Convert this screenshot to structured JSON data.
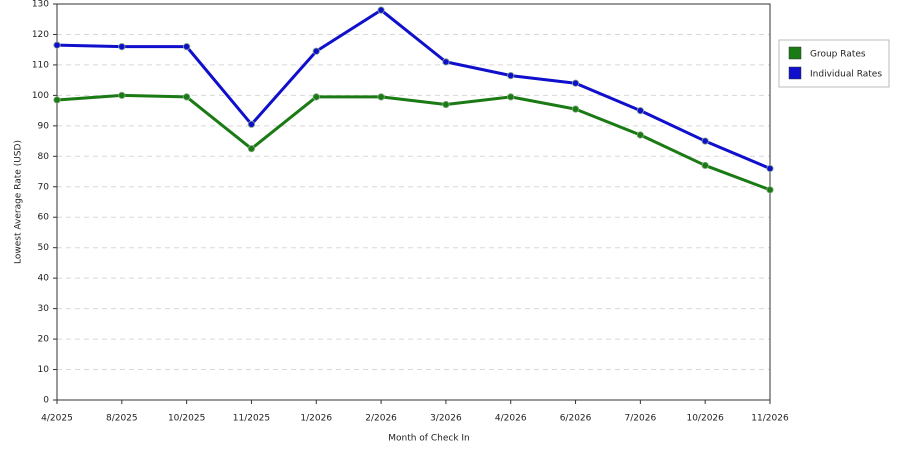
{
  "chart_data": {
    "type": "line",
    "xlabel": "Month of Check In",
    "ylabel": "Lowest Average Rate (USD)",
    "categories": [
      "4/2025",
      "8/2025",
      "10/2025",
      "11/2025",
      "1/2026",
      "2/2026",
      "3/2026",
      "4/2026",
      "6/2026",
      "7/2026",
      "10/2026",
      "11/2026"
    ],
    "series": [
      {
        "name": "Group Rates",
        "color": "#1a7a14",
        "values": [
          98.5,
          100,
          99.5,
          82.5,
          99.5,
          99.5,
          97,
          99.5,
          95.5,
          87,
          77,
          69
        ]
      },
      {
        "name": "Individual Rates",
        "color": "#1010cc",
        "values": [
          116.5,
          116,
          116,
          90.5,
          114.5,
          128,
          111,
          106.5,
          104,
          95,
          85,
          76
        ]
      }
    ],
    "ylim": [
      0,
      130
    ],
    "yticks": [
      0,
      10,
      20,
      30,
      40,
      50,
      60,
      70,
      80,
      90,
      100,
      110,
      120,
      130
    ],
    "grid": true
  }
}
